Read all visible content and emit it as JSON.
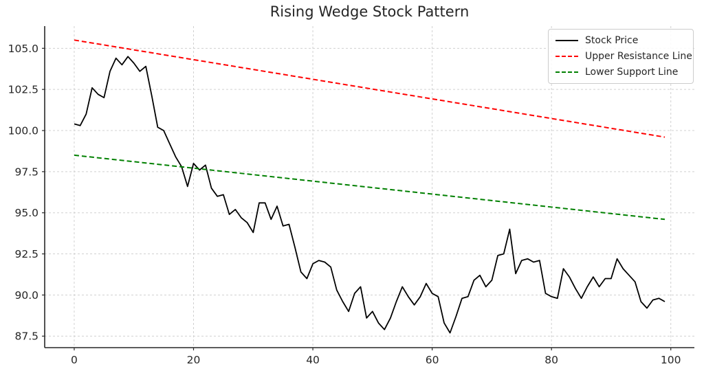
{
  "title": "Rising Wedge Stock Pattern",
  "colors": {
    "background": "#ffffff",
    "grid": "#d0d0d0",
    "spine": "#262626",
    "tick_text": "#262626",
    "title_text": "#262626",
    "stock": "#000000",
    "resistance": "#ff0000",
    "support": "#008000",
    "legend_border": "#cccccc"
  },
  "chart_data": {
    "type": "line",
    "title": "Rising Wedge Stock Pattern",
    "xlabel": "",
    "ylabel": "",
    "xlim": [
      -4.95,
      103.95
    ],
    "ylim": [
      86.8,
      106.35
    ],
    "x_ticks": [
      0,
      20,
      40,
      60,
      80,
      100
    ],
    "x_tick_labels": [
      "0",
      "20",
      "40",
      "60",
      "80",
      "100"
    ],
    "y_ticks": [
      87.5,
      90.0,
      92.5,
      95.0,
      97.5,
      100.0,
      102.5,
      105.0
    ],
    "y_tick_labels": [
      "87.5",
      "90.0",
      "92.5",
      "95.0",
      "97.5",
      "100.0",
      "102.5",
      "105.0"
    ],
    "grid": true,
    "grid_style": "dashed",
    "legend_position": "upper right",
    "series": [
      {
        "name": "Stock Price",
        "color": "#000000",
        "style": "solid",
        "width": 1.8,
        "values": [
          100.4,
          100.3,
          101.0,
          102.6,
          102.2,
          102.0,
          103.6,
          104.4,
          104.0,
          104.5,
          104.1,
          103.6,
          103.9,
          102.1,
          100.2,
          100.0,
          99.2,
          98.4,
          97.8,
          96.6,
          98.0,
          97.6,
          97.9,
          96.5,
          96.0,
          96.1,
          94.9,
          95.2,
          94.7,
          94.4,
          93.8,
          95.6,
          95.6,
          94.6,
          95.4,
          94.2,
          94.3,
          92.9,
          91.4,
          91.0,
          91.9,
          92.1,
          92.0,
          91.7,
          90.3,
          89.6,
          89.0,
          90.1,
          90.5,
          88.6,
          89.0,
          88.3,
          87.9,
          88.6,
          89.6,
          90.5,
          89.9,
          89.4,
          89.9,
          90.7,
          90.1,
          89.9,
          88.3,
          87.7,
          88.7,
          89.8,
          89.9,
          90.9,
          91.2,
          90.5,
          90.9,
          92.4,
          92.5,
          94.0,
          91.3,
          92.1,
          92.2,
          92.0,
          92.1,
          90.1,
          89.9,
          89.8,
          91.6,
          91.1,
          90.4,
          89.8,
          90.5,
          91.1,
          90.5,
          91.0,
          91.0,
          92.2,
          91.6,
          91.2,
          90.8,
          89.6,
          89.2,
          89.7,
          89.8,
          89.6
        ]
      },
      {
        "name": "Upper Resistance Line",
        "color": "#ff0000",
        "style": "dashed",
        "width": 2,
        "x": [
          0,
          99
        ],
        "values": [
          105.5,
          99.6
        ]
      },
      {
        "name": "Lower Support Line",
        "color": "#008000",
        "style": "dashed",
        "width": 2,
        "x": [
          0,
          99
        ],
        "values": [
          98.5,
          94.6
        ]
      }
    ]
  }
}
